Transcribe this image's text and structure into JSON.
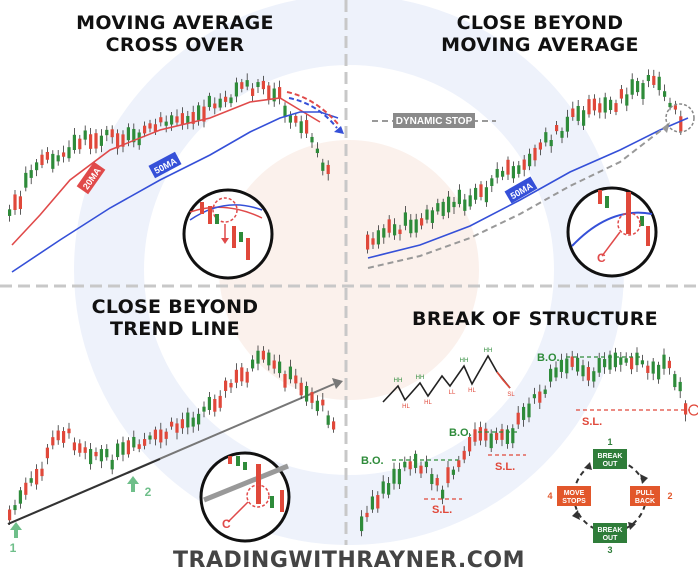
{
  "panels": {
    "p1": {
      "title_line1": "MOVING AVERAGE",
      "title_line2": "CROSS OVER",
      "ma_fast_label": "20MA",
      "ma_slow_label": "50MA"
    },
    "p2": {
      "title_line1": "CLOSE BEYOND",
      "title_line2": "MOVING AVERAGE",
      "dynamic_stop_label": "DYNAMIC STOP",
      "ma_label": "50MA",
      "callout_label": "C"
    },
    "p3": {
      "title_line1": "CLOSE BEYOND",
      "title_line2": "TREND LINE",
      "touch1_label": "1",
      "touch2_label": "2",
      "callout_label": "C"
    },
    "p4": {
      "title": "BREAK OF STRUCTURE",
      "bo_label": "B.O.",
      "sl_label": "S.L.",
      "mini_labels": [
        "HH",
        "HL",
        "HH",
        "HL",
        "HH",
        "HL",
        "HH",
        "SL",
        "LL"
      ],
      "cycle": {
        "top": "BREAK OUT",
        "right": "PULL BACK",
        "bottom": "BREAK OUT",
        "left": "MOVE STOPS",
        "n1": "1",
        "n2": "2",
        "n3": "3",
        "n4": "4"
      }
    }
  },
  "footer": "TRADINGWITHRAYNER.COM",
  "colors": {
    "bull": "#2e8b3a",
    "bear": "#e0483a",
    "ma_fast": "#e04a4a",
    "ma_slow": "#3550d8",
    "trend": "#777777",
    "arrow_green": "#6fbf8a",
    "cycle_green": "#2f7d3a",
    "cycle_orange": "#e2572b",
    "divider": "#c8c8c8"
  }
}
